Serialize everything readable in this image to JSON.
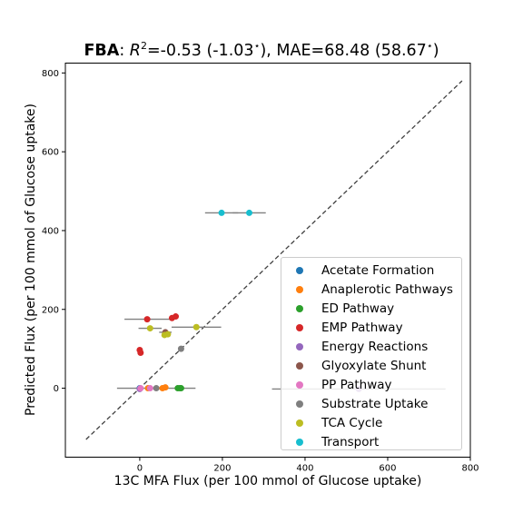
{
  "chart_data": {
    "type": "scatter",
    "title": {
      "bold": "FBA",
      "rest_prefix": ": ",
      "r2_symbol": "R",
      "r2_exponent": "2",
      "r2_value": "=-0.53 (-1.03",
      "star": "⋆",
      "mae_text": "), MAE=68.48 (58.67",
      "end": ")"
    },
    "xlabel": "13C MFA Flux (per 100 mmol of Glucose uptake)",
    "ylabel": "Predicted Flux (per 100 mmol of Glucose uptake)",
    "xlim": [
      -180,
      800
    ],
    "ylim": [
      -175,
      825
    ],
    "xticks": [
      0,
      200,
      400,
      600,
      800
    ],
    "yticks": [
      0,
      200,
      400,
      600,
      800
    ],
    "xtick_labels": [
      "0",
      "200",
      "400",
      "600",
      "800"
    ],
    "ytick_labels": [
      "0",
      "200",
      "400",
      "600",
      "800"
    ],
    "grid": false,
    "legend_position": "lower right",
    "identity_line": {
      "from": -130,
      "to": 780,
      "style": "dashed",
      "color": "#404040"
    },
    "series": [
      {
        "name": "Acetate Formation",
        "color": "#1f77b4",
        "points": [
          {
            "x": 0,
            "y": 0,
            "xerr": 10
          }
        ]
      },
      {
        "name": "Anaplerotic Pathways",
        "color": "#ff7f0e",
        "points": [
          {
            "x": 20,
            "y": 0,
            "xerr": 0
          },
          {
            "x": 55,
            "y": 0,
            "xerr": 0
          },
          {
            "x": 62,
            "y": 2,
            "xerr": 0
          }
        ]
      },
      {
        "name": "ED Pathway",
        "color": "#2ca02c",
        "points": [
          {
            "x": 92,
            "y": 0,
            "xerr": 0
          },
          {
            "x": 97,
            "y": 0,
            "xerr": 0
          },
          {
            "x": 100,
            "y": 0,
            "xerr": 0
          }
        ]
      },
      {
        "name": "EMP Pathway",
        "color": "#d62728",
        "points": [
          {
            "x": 0,
            "y": 97,
            "xerr": 0
          },
          {
            "x": 2,
            "y": 90,
            "xerr": 0
          },
          {
            "x": 18,
            "y": 175,
            "xerr": 55
          },
          {
            "x": 78,
            "y": 178,
            "xerr": 0
          },
          {
            "x": 87,
            "y": 182,
            "xerr": 0
          }
        ]
      },
      {
        "name": "Energy Reactions",
        "color": "#9467bd",
        "points": [
          {
            "x": 0,
            "y": -2,
            "xerr": 0
          },
          {
            "x": 530,
            "y": -2,
            "xerr": 210
          }
        ]
      },
      {
        "name": "Glyoxylate Shunt",
        "color": "#8c564b",
        "points": [
          {
            "x": 62,
            "y": 142,
            "xerr": 15
          }
        ]
      },
      {
        "name": "PP Pathway",
        "color": "#e377c2",
        "points": [
          {
            "x": 2,
            "y": 0,
            "xerr": 0
          },
          {
            "x": 25,
            "y": 0,
            "xerr": 0
          }
        ]
      },
      {
        "name": "Substrate Uptake",
        "color": "#7f7f7f",
        "points": [
          {
            "x": 100,
            "y": 100,
            "xerr": 0
          },
          {
            "x": 40,
            "y": 0,
            "xerr": 95
          }
        ]
      },
      {
        "name": "TCA Cycle",
        "color": "#bcbd22",
        "points": [
          {
            "x": 25,
            "y": 152,
            "xerr": 28
          },
          {
            "x": 60,
            "y": 135,
            "xerr": 0
          },
          {
            "x": 68,
            "y": 137,
            "xerr": 0
          },
          {
            "x": 137,
            "y": 155,
            "xerr": 60
          }
        ]
      },
      {
        "name": "Transport",
        "color": "#17becf",
        "points": [
          {
            "x": 198,
            "y": 445,
            "xerr": 40
          },
          {
            "x": 265,
            "y": 445,
            "xerr": 40
          }
        ]
      }
    ]
  }
}
